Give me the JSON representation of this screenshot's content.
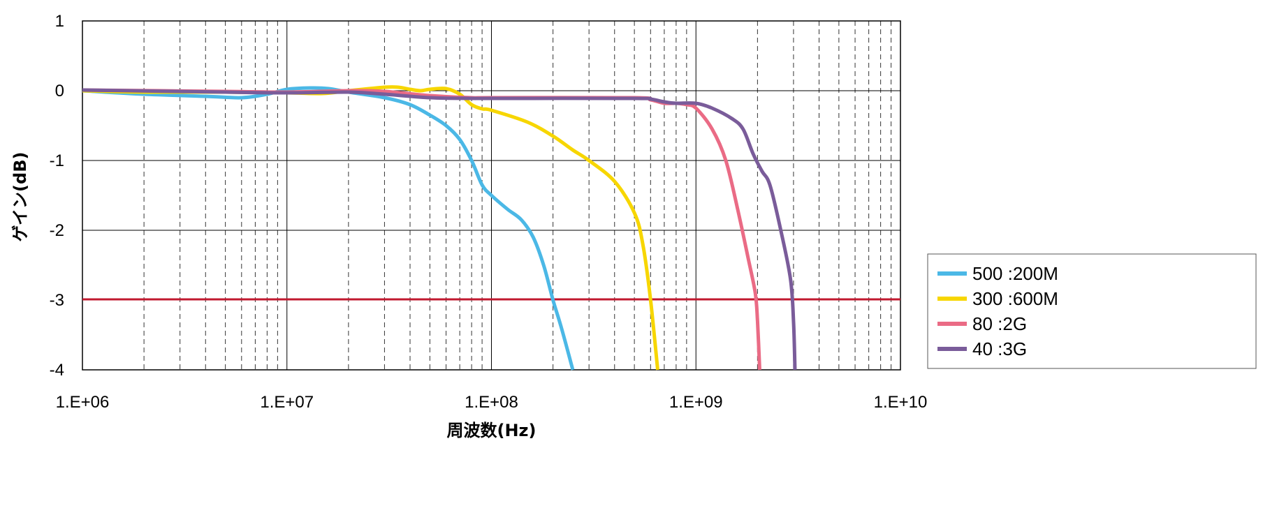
{
  "chart_data": {
    "type": "line",
    "xlabel": "周波数(Hz)",
    "ylabel": "ゲイン(dB)",
    "x_scale": "log",
    "xlim": [
      1000000,
      10000000000
    ],
    "ylim": [
      -4,
      1
    ],
    "x_ticks": [
      "1.E+06",
      "1.E+07",
      "1.E+08",
      "1.E+09",
      "1.E+10"
    ],
    "y_ticks": [
      "1",
      "0",
      "-1",
      "-2",
      "-3",
      "-4"
    ],
    "grid": true,
    "legend_position": "right",
    "reference_line": {
      "y": -3,
      "color": "#c0182f"
    },
    "series": [
      {
        "name": "500 :200M",
        "color": "#4bb8e6",
        "points": [
          [
            1000000,
            0
          ],
          [
            2000000,
            -0.05
          ],
          [
            4000000,
            -0.08
          ],
          [
            6000000,
            -0.1
          ],
          [
            8000000,
            -0.05
          ],
          [
            10000000,
            0.02
          ],
          [
            13000000,
            0.04
          ],
          [
            16000000,
            0.03
          ],
          [
            20000000,
            -0.02
          ],
          [
            30000000,
            -0.1
          ],
          [
            40000000,
            -0.2
          ],
          [
            50000000,
            -0.35
          ],
          [
            60000000,
            -0.5
          ],
          [
            70000000,
            -0.7
          ],
          [
            80000000,
            -1.0
          ],
          [
            90000000,
            -1.35
          ],
          [
            100000000,
            -1.5
          ],
          [
            120000000,
            -1.7
          ],
          [
            140000000,
            -1.85
          ],
          [
            160000000,
            -2.1
          ],
          [
            180000000,
            -2.5
          ],
          [
            200000000,
            -3.0
          ],
          [
            220000000,
            -3.4
          ],
          [
            250000000,
            -4.0
          ]
        ]
      },
      {
        "name": "300 :600M",
        "color": "#f7d600",
        "points": [
          [
            1000000,
            0
          ],
          [
            2000000,
            -0.02
          ],
          [
            5000000,
            -0.02
          ],
          [
            10000000,
            -0.03
          ],
          [
            15000000,
            -0.04
          ],
          [
            20000000,
            0
          ],
          [
            30000000,
            0.05
          ],
          [
            35000000,
            0.05
          ],
          [
            40000000,
            0.02
          ],
          [
            45000000,
            0
          ],
          [
            50000000,
            0.02
          ],
          [
            60000000,
            0.03
          ],
          [
            70000000,
            -0.05
          ],
          [
            80000000,
            -0.2
          ],
          [
            90000000,
            -0.26
          ],
          [
            100000000,
            -0.28
          ],
          [
            150000000,
            -0.45
          ],
          [
            200000000,
            -0.65
          ],
          [
            250000000,
            -0.85
          ],
          [
            300000000,
            -1.0
          ],
          [
            400000000,
            -1.3
          ],
          [
            500000000,
            -1.75
          ],
          [
            550000000,
            -2.2
          ],
          [
            600000000,
            -3.0
          ],
          [
            650000000,
            -4.0
          ]
        ]
      },
      {
        "name": "80 :2G",
        "color": "#ea6b85",
        "points": [
          [
            1000000,
            0.01
          ],
          [
            5000000,
            -0.01
          ],
          [
            10000000,
            -0.02
          ],
          [
            20000000,
            0
          ],
          [
            30000000,
            -0.01
          ],
          [
            50000000,
            -0.07
          ],
          [
            80000000,
            -0.1
          ],
          [
            100000000,
            -0.1
          ],
          [
            500000000,
            -0.1
          ],
          [
            600000000,
            -0.13
          ],
          [
            700000000,
            -0.18
          ],
          [
            800000000,
            -0.18
          ],
          [
            900000000,
            -0.2
          ],
          [
            1000000000,
            -0.25
          ],
          [
            1200000000,
            -0.55
          ],
          [
            1400000000,
            -1.0
          ],
          [
            1600000000,
            -1.7
          ],
          [
            1800000000,
            -2.4
          ],
          [
            1950000000,
            -2.9
          ],
          [
            2000000000,
            -3.3
          ],
          [
            2050000000,
            -4.0
          ]
        ]
      },
      {
        "name": "40 :3G",
        "color": "#7a5c9a",
        "points": [
          [
            1000000,
            0.01
          ],
          [
            5000000,
            -0.02
          ],
          [
            10000000,
            -0.03
          ],
          [
            20000000,
            -0.02
          ],
          [
            30000000,
            -0.05
          ],
          [
            50000000,
            -0.1
          ],
          [
            80000000,
            -0.11
          ],
          [
            100000000,
            -0.11
          ],
          [
            500000000,
            -0.11
          ],
          [
            600000000,
            -0.12
          ],
          [
            700000000,
            -0.16
          ],
          [
            800000000,
            -0.18
          ],
          [
            1000000000,
            -0.18
          ],
          [
            1200000000,
            -0.25
          ],
          [
            1500000000,
            -0.4
          ],
          [
            1700000000,
            -0.55
          ],
          [
            1900000000,
            -0.9
          ],
          [
            2100000000,
            -1.15
          ],
          [
            2300000000,
            -1.35
          ],
          [
            2600000000,
            -2.0
          ],
          [
            2900000000,
            -2.7
          ],
          [
            3000000000,
            -3.3
          ],
          [
            3050000000,
            -4.0
          ]
        ]
      }
    ]
  }
}
